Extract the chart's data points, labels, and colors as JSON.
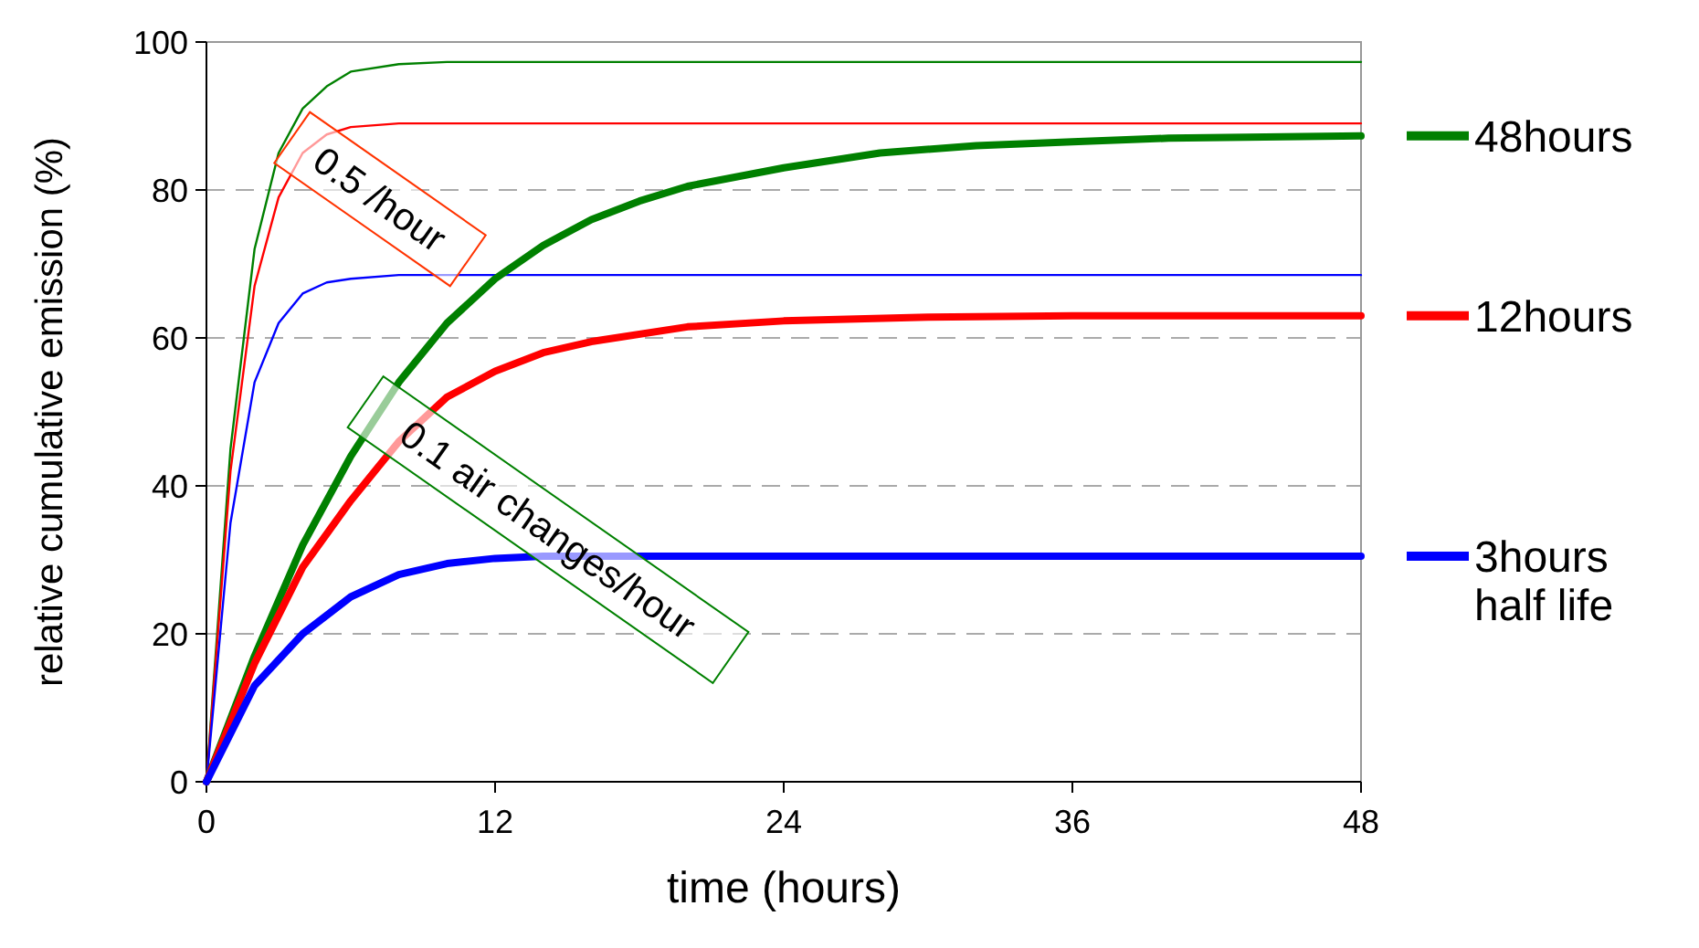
{
  "chart_data": {
    "type": "line",
    "xlabel": "time (hours)",
    "ylabel": "relative cumulative emission (%)",
    "xlim": [
      0,
      48
    ],
    "xticks": [
      0,
      12,
      24,
      36,
      48
    ],
    "ylim": [
      0,
      100
    ],
    "yticks": [
      0,
      20,
      40,
      60,
      80,
      100
    ],
    "grid": "y",
    "legend": "right",
    "line_style": "solid",
    "annotations": [
      "0.5 /hour",
      "0.1 air changes/hour"
    ],
    "series": [
      {
        "color": "#008000",
        "x": [
          0,
          1,
          2,
          3,
          4,
          5,
          6,
          8,
          10,
          48
        ],
        "values": [
          0,
          45,
          72,
          85,
          91,
          94,
          96,
          97,
          97.3,
          97.3
        ]
      },
      {
        "color": "#ff0000",
        "x": [
          0,
          1,
          2,
          3,
          4,
          5,
          6,
          8,
          48
        ],
        "values": [
          0,
          42,
          67,
          79,
          85,
          87.5,
          88.5,
          89,
          89
        ]
      },
      {
        "color": "#0000ff",
        "x": [
          0,
          1,
          2,
          3,
          4,
          5,
          6,
          8,
          48
        ],
        "values": [
          0,
          35,
          54,
          62,
          66,
          67.5,
          68,
          68.5,
          68.5
        ]
      },
      {
        "name": "48hours",
        "color": "#008000",
        "x": [
          0,
          2,
          4,
          6,
          8,
          10,
          12,
          14,
          16,
          18,
          20,
          24,
          28,
          32,
          36,
          40,
          48
        ],
        "values": [
          0,
          17,
          32,
          44,
          54,
          62,
          68,
          72.5,
          76,
          78.5,
          80.5,
          83,
          85,
          86,
          86.5,
          87,
          87.3
        ]
      },
      {
        "name": "12hours",
        "color": "#ff0000",
        "x": [
          0,
          2,
          4,
          6,
          8,
          10,
          12,
          14,
          16,
          20,
          24,
          30,
          36,
          48
        ],
        "values": [
          0,
          16,
          29,
          38,
          46,
          52,
          55.5,
          58,
          59.5,
          61.5,
          62.3,
          62.8,
          63,
          63
        ]
      },
      {
        "name": "3hours half life",
        "color": "#0000ff",
        "x": [
          0,
          2,
          4,
          6,
          8,
          10,
          12,
          14,
          48
        ],
        "values": [
          0,
          13,
          20,
          25,
          28,
          29.5,
          30.2,
          30.5,
          30.5
        ]
      }
    ]
  }
}
